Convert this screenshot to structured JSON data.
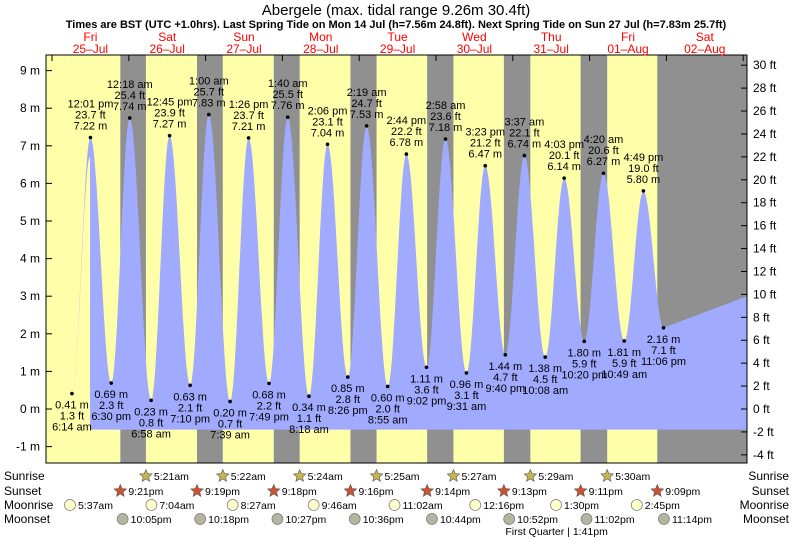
{
  "chart_data": {
    "type": "area",
    "title": "Abergele (max. tidal range 9.26m 30.4ft)",
    "subtitle": "Times are BST (UTC +1.0hrs). Last Spring Tide on Mon 14 Jul (h=7.56m 24.8ft). Next Spring Tide on Sun 27 Jul (h=7.83m 25.7ft)",
    "y_left_unit": "m",
    "y_right_unit": "ft",
    "y_left_ticks": [
      -1,
      0,
      1,
      2,
      3,
      4,
      5,
      6,
      7,
      8,
      9
    ],
    "y_right_ticks": [
      -4,
      -2,
      0,
      2,
      4,
      6,
      8,
      10,
      12,
      14,
      16,
      18,
      20,
      22,
      24,
      26,
      28,
      30
    ],
    "ylim_m": [
      -1.5,
      9.6
    ],
    "days": [
      {
        "dow": "Fri",
        "date": "25–Jul"
      },
      {
        "dow": "Sat",
        "date": "26–Jul"
      },
      {
        "dow": "Sun",
        "date": "27–Jul"
      },
      {
        "dow": "Mon",
        "date": "28–Jul"
      },
      {
        "dow": "Tue",
        "date": "29–Jul"
      },
      {
        "dow": "Wed",
        "date": "30–Jul"
      },
      {
        "dow": "Thu",
        "date": "31–Jul"
      },
      {
        "dow": "Fri",
        "date": "01–Aug"
      },
      {
        "dow": "Sat",
        "date": "02–Aug"
      }
    ],
    "tides": [
      {
        "type": "low",
        "t": "6:14 am",
        "m": 0.41,
        "ft": "1.3 ft",
        "mt": "0.41 m"
      },
      {
        "type": "high",
        "t": "12:01 pm",
        "m": 7.22,
        "ft": "23.7 ft",
        "mt": "7.22 m"
      },
      {
        "type": "low",
        "t": "6:30 pm",
        "m": 0.69,
        "ft": "2.3 ft",
        "mt": "0.69 m"
      },
      {
        "type": "high",
        "t": "12:18 am",
        "m": 7.74,
        "ft": "25.4 ft",
        "mt": "7.74 m"
      },
      {
        "type": "low",
        "t": "6:58 am",
        "m": 0.23,
        "ft": "0.8 ft",
        "mt": "0.23 m"
      },
      {
        "type": "high",
        "t": "12:45 pm",
        "m": 7.27,
        "ft": "23.9 ft",
        "mt": "7.27 m"
      },
      {
        "type": "low",
        "t": "7:10 pm",
        "m": 0.63,
        "ft": "2.1 ft",
        "mt": "0.63 m"
      },
      {
        "type": "high",
        "t": "1:00 am",
        "m": 7.83,
        "ft": "25.7 ft",
        "mt": "7.83 m"
      },
      {
        "type": "low",
        "t": "7:39 am",
        "m": 0.2,
        "ft": "0.7 ft",
        "mt": "0.20 m"
      },
      {
        "type": "high",
        "t": "1:26 pm",
        "m": 7.21,
        "ft": "23.7 ft",
        "mt": "7.21 m"
      },
      {
        "type": "low",
        "t": "7:49 pm",
        "m": 0.68,
        "ft": "2.2 ft",
        "mt": "0.68 m"
      },
      {
        "type": "high",
        "t": "1:40 am",
        "m": 7.76,
        "ft": "25.5 ft",
        "mt": "7.76 m"
      },
      {
        "type": "low",
        "t": "8:18 am",
        "m": 0.34,
        "ft": "1.1 ft",
        "mt": "0.34 m"
      },
      {
        "type": "high",
        "t": "2:06 pm",
        "m": 7.04,
        "ft": "23.1 ft",
        "mt": "7.04 m"
      },
      {
        "type": "low",
        "t": "8:26 pm",
        "m": 0.85,
        "ft": "2.8 ft",
        "mt": "0.85 m"
      },
      {
        "type": "high",
        "t": "2:19 am",
        "m": 7.53,
        "ft": "24.7 ft",
        "mt": "7.53 m"
      },
      {
        "type": "low",
        "t": "8:55 am",
        "m": 0.6,
        "ft": "2.0 ft",
        "mt": "0.60 m"
      },
      {
        "type": "high",
        "t": "2:44 pm",
        "m": 6.78,
        "ft": "22.2 ft",
        "mt": "6.78 m"
      },
      {
        "type": "low",
        "t": "9:02 pm",
        "m": 1.11,
        "ft": "3.6 ft",
        "mt": "1.11 m"
      },
      {
        "type": "high",
        "t": "2:58 am",
        "m": 7.18,
        "ft": "23.6 ft",
        "mt": "7.18 m"
      },
      {
        "type": "low",
        "t": "9:31 am",
        "m": 0.96,
        "ft": "3.1 ft",
        "mt": "0.96 m"
      },
      {
        "type": "high",
        "t": "3:23 pm",
        "m": 6.47,
        "ft": "21.2 ft",
        "mt": "6.47 m"
      },
      {
        "type": "low",
        "t": "9:40 pm",
        "m": 1.44,
        "ft": "4.7 ft",
        "mt": "1.44 m"
      },
      {
        "type": "high",
        "t": "3:37 am",
        "m": 6.74,
        "ft": "22.1 ft",
        "mt": "6.74 m"
      },
      {
        "type": "low",
        "t": "10:08 am",
        "m": 1.38,
        "ft": "4.5 ft",
        "mt": "1.38 m"
      },
      {
        "type": "high",
        "t": "4:03 pm",
        "m": 6.14,
        "ft": "20.1 ft",
        "mt": "6.14 m"
      },
      {
        "type": "low",
        "t": "10:20 pm",
        "m": 1.8,
        "ft": "5.9 ft",
        "mt": "1.80 m"
      },
      {
        "type": "high",
        "t": "4:20 am",
        "m": 6.27,
        "ft": "20.6 ft",
        "mt": "6.27 m"
      },
      {
        "type": "low",
        "t": "10:49 am",
        "m": 1.81,
        "ft": "5.9 ft",
        "mt": "1.81 m"
      },
      {
        "type": "high",
        "t": "4:49 pm",
        "m": 5.8,
        "ft": "19.0 ft",
        "mt": "5.80 m"
      },
      {
        "type": "low",
        "t": "11:06 pm",
        "m": 2.16,
        "ft": "7.1 ft",
        "mt": "2.16 m"
      }
    ],
    "sunrise": [
      "5:21am",
      "5:22am",
      "5:24am",
      "5:25am",
      "5:27am",
      "5:29am",
      "5:30am"
    ],
    "sunset": [
      "9:21pm",
      "9:19pm",
      "9:18pm",
      "9:16pm",
      "9:14pm",
      "9:13pm",
      "9:11pm",
      "9:09pm"
    ],
    "moonrise": [
      "5:37am",
      "7:04am",
      "8:27am",
      "9:46am",
      "11:02am",
      "12:16pm",
      "1:30pm",
      "2:45pm"
    ],
    "moonset": [
      "10:05pm",
      "10:18pm",
      "10:27pm",
      "10:36pm",
      "10:44pm",
      "10:52pm",
      "11:02pm",
      "11:14pm"
    ],
    "moon_phase": "First Quarter | 1:41pm",
    "row_labels": {
      "sunrise": "Sunrise",
      "sunset": "Sunset",
      "moonrise": "Moonrise",
      "moonset": "Moonset"
    }
  },
  "colors": {
    "day": "#ffffaa",
    "night": "#909090",
    "water": "#a0aaff",
    "high_label": "#000000",
    "date_text": "#ff0000",
    "sun_star": "#c8b450",
    "sunset_star": "#d05030",
    "moonrise_fill": "#ffffcc",
    "moonset_fill": "#b4b4a0"
  }
}
